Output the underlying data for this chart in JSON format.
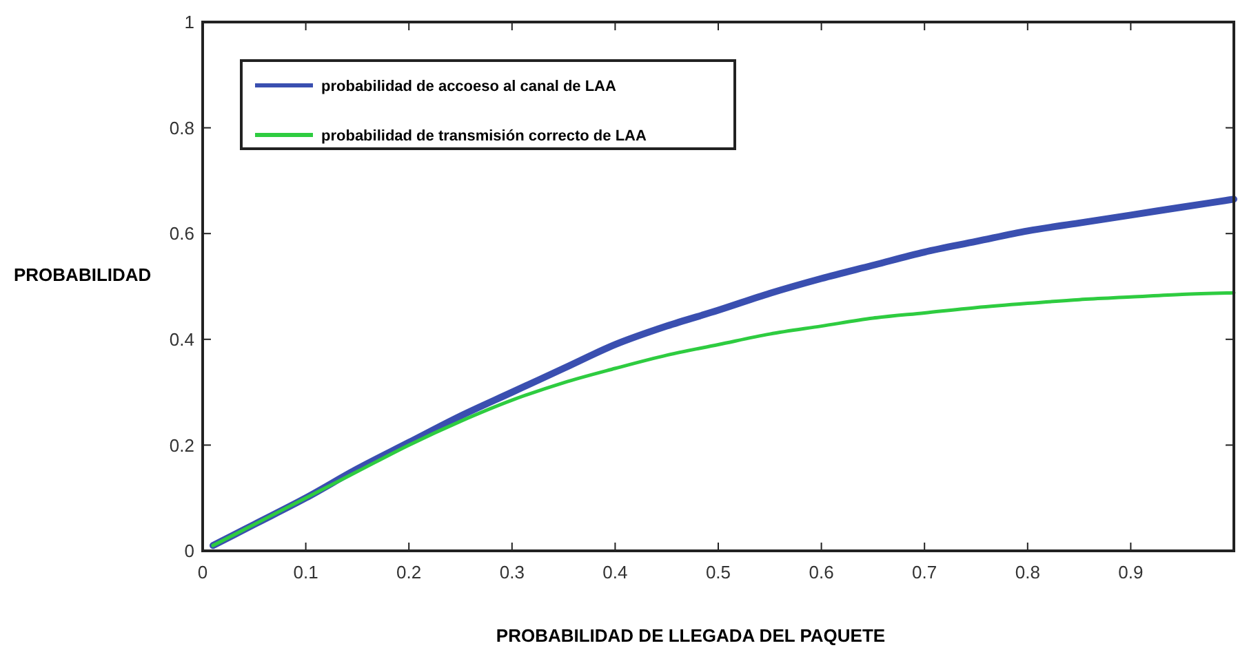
{
  "chart_data": {
    "type": "line",
    "xlabel": "PROBABILIDAD DE LLEGADA DEL PAQUETE",
    "ylabel": "PROBABILIDAD",
    "x": [
      0.01,
      0.05,
      0.1,
      0.15,
      0.2,
      0.25,
      0.3,
      0.35,
      0.4,
      0.45,
      0.5,
      0.55,
      0.6,
      0.65,
      0.7,
      0.75,
      0.8,
      0.85,
      0.9,
      0.95,
      1.0
    ],
    "series": [
      {
        "name": "probabilidad de accoeso al canal de LAA",
        "color": "#3a4fb0",
        "values": [
          0.01,
          0.05,
          0.1,
          0.155,
          0.205,
          0.255,
          0.3,
          0.345,
          0.39,
          0.425,
          0.455,
          0.487,
          0.515,
          0.54,
          0.565,
          0.585,
          0.605,
          0.62,
          0.635,
          0.65,
          0.665
        ]
      },
      {
        "name": "probabilidad de transmisión correcto de LAA",
        "color": "#2ecc40",
        "values": [
          0.01,
          0.05,
          0.1,
          0.15,
          0.2,
          0.245,
          0.285,
          0.318,
          0.345,
          0.37,
          0.39,
          0.41,
          0.425,
          0.44,
          0.45,
          0.46,
          0.468,
          0.475,
          0.48,
          0.485,
          0.488
        ]
      }
    ],
    "xlim": [
      0,
      1
    ],
    "ylim": [
      0,
      1
    ],
    "xticks": [
      0,
      0.1,
      0.2,
      0.3,
      0.4,
      0.5,
      0.6,
      0.7,
      0.8,
      0.9,
      {
        "value": 1,
        "label": null
      }
    ],
    "yticks": [
      0,
      0.2,
      0.4,
      0.6,
      0.8,
      1
    ],
    "grid": false,
    "legend": "top left",
    "marker": "none",
    "line_style": "solid"
  }
}
